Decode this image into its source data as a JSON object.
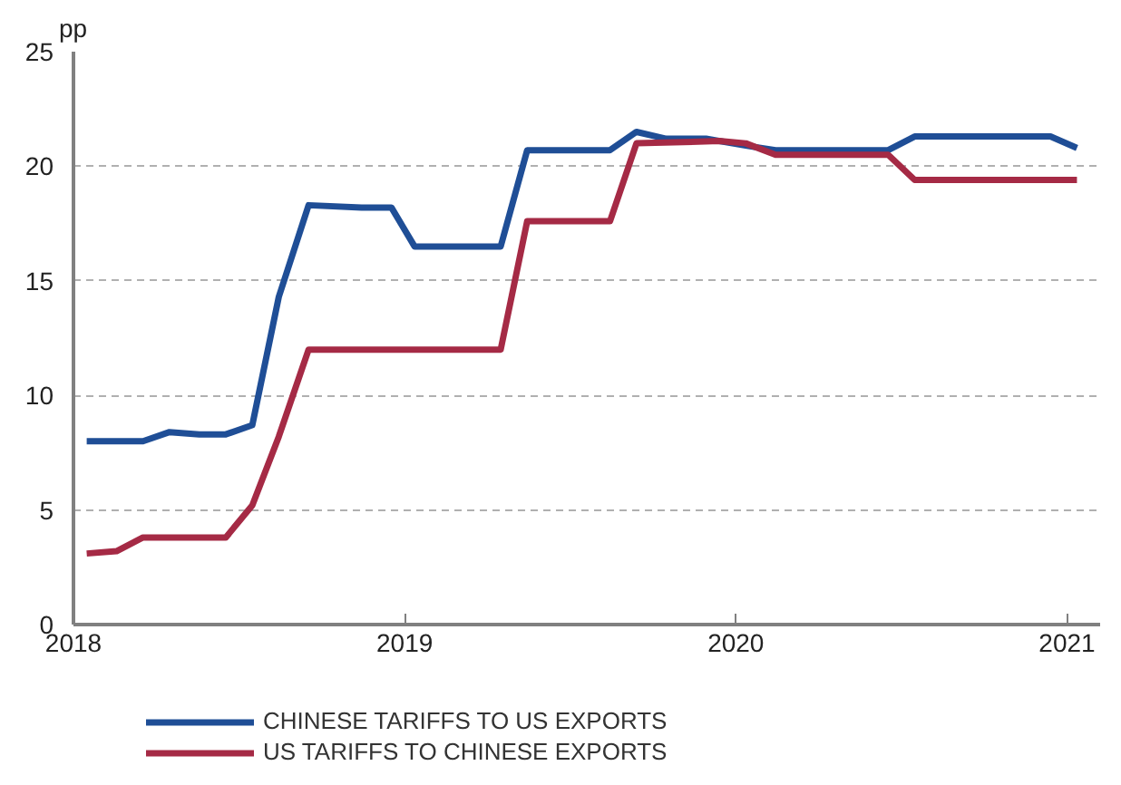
{
  "chart_data": {
    "type": "line",
    "ylabel": "pp",
    "xlim": [
      2018,
      2021.1
    ],
    "xticks": [
      2018,
      2019,
      2020,
      2021
    ],
    "ylim": [
      0,
      25
    ],
    "yticks": [
      0,
      5,
      10,
      15,
      20,
      25
    ],
    "grid": "y",
    "legend": "bottom",
    "line_style": "solid",
    "series": [
      {
        "name": "CHINESE TARIFFS TO US EXPORTS",
        "color": "#1f4e96",
        "x": [
          2018.04,
          2018.21,
          2018.29,
          2018.38,
          2018.46,
          2018.54,
          2018.62,
          2018.71,
          2018.87,
          2018.96,
          2019.03,
          2019.29,
          2019.37,
          2019.62,
          2019.7,
          2019.79,
          2019.91,
          2020.03,
          2020.12,
          2020.46,
          2020.54,
          2020.95,
          2021.03
        ],
        "values": [
          8.0,
          8.0,
          8.4,
          8.3,
          8.3,
          8.7,
          14.3,
          18.3,
          18.2,
          18.2,
          16.5,
          16.5,
          20.7,
          20.7,
          21.5,
          21.2,
          21.2,
          20.9,
          20.7,
          20.7,
          21.3,
          21.3,
          20.8
        ]
      },
      {
        "name": "US TARIFFS TO CHINESE EXPORTS",
        "color": "#a52a45",
        "x": [
          2018.04,
          2018.13,
          2018.21,
          2018.46,
          2018.54,
          2018.62,
          2018.71,
          2019.29,
          2019.37,
          2019.62,
          2019.7,
          2019.95,
          2020.03,
          2020.12,
          2020.46,
          2020.54,
          2021.03
        ],
        "values": [
          3.1,
          3.2,
          3.8,
          3.8,
          5.2,
          8.2,
          12.0,
          12.0,
          17.6,
          17.6,
          21.0,
          21.1,
          21.0,
          20.5,
          20.5,
          19.4,
          19.4
        ]
      }
    ]
  }
}
